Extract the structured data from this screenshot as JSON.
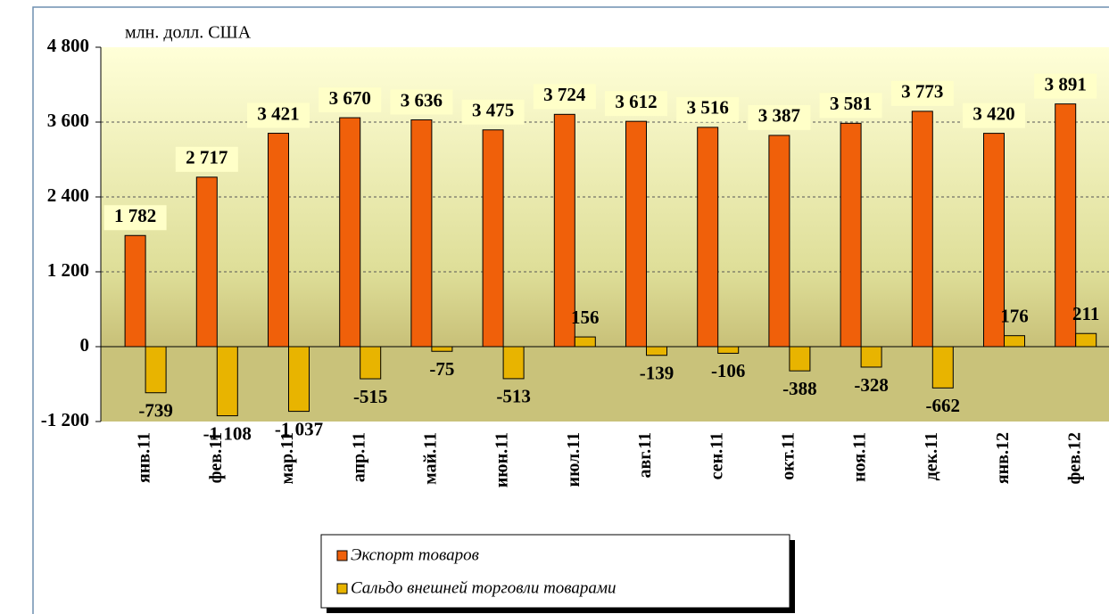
{
  "chart_data": {
    "type": "bar",
    "y_axis_label": "млн. долл. США",
    "categories": [
      "янв.11",
      "фев.11",
      "мар.11",
      "апр.11",
      "май.11",
      "июн.11",
      "июл.11",
      "авг.11",
      "сен.11",
      "окт.11",
      "ноя.11",
      "дек.11",
      "янв.12",
      "фев.12"
    ],
    "series": [
      {
        "name": "Экспорт товаров",
        "color": "#f0600a",
        "values": [
          1782,
          2717,
          3421,
          3670,
          3636,
          3475,
          3724,
          3612,
          3516,
          3387,
          3581,
          3773,
          3420,
          3891
        ],
        "value_labels": [
          "1 782",
          "2 717",
          "3 421",
          "3 670",
          "3 636",
          "3 475",
          "3 724",
          "3 612",
          "3 516",
          "3 387",
          "3 581",
          "3 773",
          "3 420",
          "3 891"
        ]
      },
      {
        "name": "Сальдо внешней торговли товарами",
        "color": "#e8b400",
        "values": [
          -739,
          -1108,
          -1037,
          -515,
          -75,
          -513,
          156,
          -139,
          -106,
          -388,
          -328,
          -662,
          176,
          211
        ],
        "value_labels": [
          "-739",
          "-1 108",
          "-1 037",
          "-515",
          "-75",
          "-513",
          "156",
          "-139",
          "-106",
          "-388",
          "-328",
          "-662",
          "176",
          "211"
        ]
      }
    ],
    "ylim": [
      -1200,
      4800
    ],
    "yticks": [
      {
        "value": -1200,
        "label": "-1 200"
      },
      0,
      {
        "value": 1200,
        "label": "1 200"
      },
      {
        "value": 2400,
        "label": "2 400"
      },
      {
        "value": 3600,
        "label": "3 600"
      },
      {
        "value": 4800,
        "label": "4 800"
      }
    ],
    "grid": true,
    "legend": "bottom"
  }
}
